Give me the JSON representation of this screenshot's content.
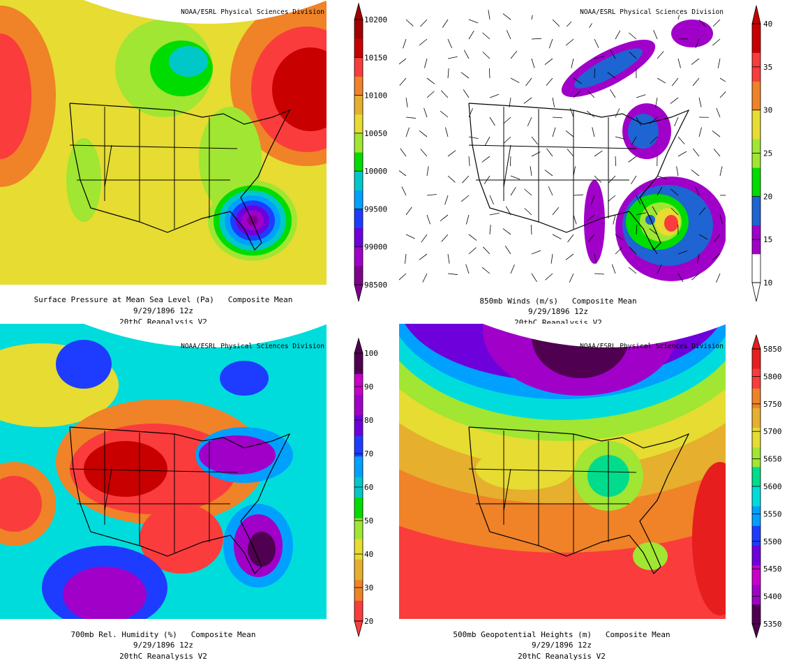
{
  "panels": [
    {
      "credit": "NOAA/ESRL Physical Sciences Division",
      "title": "Surface Pressure at Mean Sea Level (Pa)   Composite Mean",
      "date": "9/29/1896 12z",
      "dataset": "20thC Reanalysis V2",
      "colorbar": {
        "labels": [
          "10200",
          "10150",
          "10100",
          "10050",
          "10000",
          "99500",
          "99000",
          "98500"
        ],
        "colors": [
          "#80008c",
          "#a000c8",
          "#6e00dc",
          "#1e3cff",
          "#00a0ff",
          "#00c8c8",
          "#00dc00",
          "#a0e632",
          "#e6dc32",
          "#e6af2d",
          "#f08228",
          "#fa3c3c",
          "#c80000",
          "#a00000"
        ]
      }
    },
    {
      "credit": "NOAA/ESRL Physical Sciences Division",
      "title": "850mb Winds (m/s)   Composite Mean",
      "date": "9/29/1896 12z",
      "dataset": "20thC Reanalysis V2",
      "colorbar": {
        "labels": [
          "40",
          "35",
          "30",
          "25",
          "20",
          "15",
          "10"
        ],
        "colors": [
          "#ffffff",
          "#a000c8",
          "#1e64d2",
          "#00dc00",
          "#a0e632",
          "#e6dc32",
          "#f08228",
          "#fa3c3c",
          "#c80000"
        ]
      }
    },
    {
      "credit": "NOAA/ESRL Physical Sciences Division",
      "title": "700mb Rel. Humidity (%)   Composite Mean",
      "date": "9/29/1896 12z",
      "dataset": "20thC Reanalysis V2",
      "colorbar": {
        "labels": [
          "100",
          "90",
          "80",
          "70",
          "60",
          "50",
          "40",
          "30",
          "20"
        ],
        "colors": [
          "#fa3c3c",
          "#f08228",
          "#e6af2d",
          "#e6dc32",
          "#a0e632",
          "#00dc00",
          "#00c8c8",
          "#00a0ff",
          "#1e3cff",
          "#6e00dc",
          "#a000c8",
          "#c800c8",
          "#500050"
        ]
      }
    },
    {
      "credit": "NOAA/ESRL Physical Sciences Division",
      "title": "500mb Geopotential Heights (m)   Composite Mean",
      "date": "9/29/1896 12z",
      "dataset": "20thC Reanalysis V2",
      "colorbar": {
        "labels": [
          "5850",
          "5800",
          "5750",
          "5700",
          "5650",
          "5600",
          "5550",
          "5500",
          "5450",
          "5400",
          "5350"
        ],
        "colors": [
          "#500050",
          "#a000c8",
          "#c800c8",
          "#6e00dc",
          "#1e3cff",
          "#00a0ff",
          "#00dcdc",
          "#00dc8c",
          "#a0e632",
          "#e6dc32",
          "#e6af2d",
          "#f08228",
          "#fa3c3c",
          "#e61e1e"
        ]
      }
    }
  ]
}
